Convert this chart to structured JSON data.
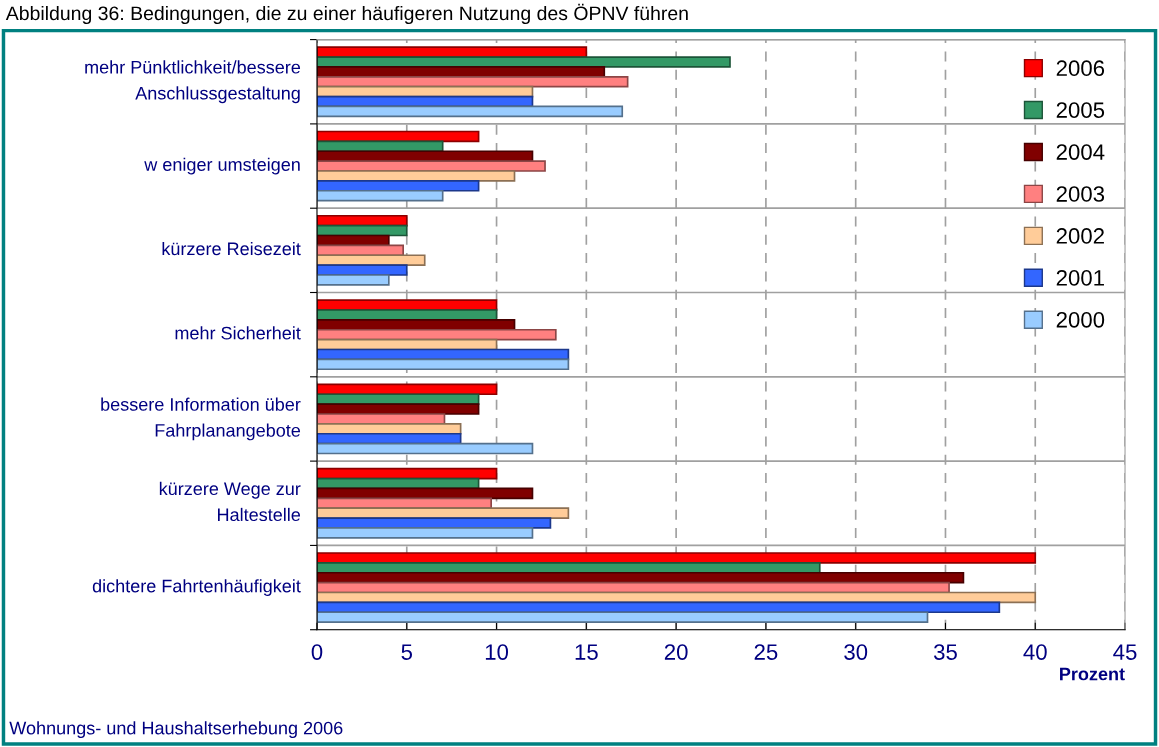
{
  "chart_data": {
    "type": "bar",
    "orientation": "horizontal",
    "title": "Abbildung 36: Bedingungen, die zu einer häufigeren Nutzung des ÖPNV führen",
    "xlabel": "Prozent",
    "annotations": [
      "Wohnungs- und Haushaltserhebung 2006"
    ],
    "categories": [
      "mehr Pünktlichkeit/bessere\nAnschlussgestaltung",
      "w eniger umsteigen",
      "kürzere Reisezeit",
      "mehr Sicherheit",
      "bessere Information über\nFahrplanangebote",
      "kürzere Wege zur\nHaltestelle",
      "dichtere Fahrtenhäufigkeit"
    ],
    "series": [
      {
        "name": "2006",
        "color": "#ff0000",
        "values": [
          15,
          9,
          5,
          10,
          10,
          10,
          40
        ]
      },
      {
        "name": "2005",
        "color": "#339966",
        "values": [
          23,
          7,
          5,
          10,
          9,
          9,
          28
        ]
      },
      {
        "name": "2004",
        "color": "#800000",
        "values": [
          16,
          12,
          4,
          11,
          9,
          12,
          36
        ]
      },
      {
        "name": "2003",
        "color": "#ff8080",
        "values": [
          17.3,
          12.7,
          4.8,
          13.3,
          7.1,
          9.7,
          35.2
        ]
      },
      {
        "name": "2002",
        "color": "#ffcc99",
        "values": [
          12,
          11,
          6,
          10,
          8,
          14,
          40
        ]
      },
      {
        "name": "2001",
        "color": "#3366ff",
        "values": [
          12,
          9,
          5,
          14,
          8,
          13,
          38
        ]
      },
      {
        "name": "2000",
        "color": "#99ccff",
        "values": [
          17,
          7,
          4,
          14,
          12,
          12,
          34
        ]
      }
    ],
    "xlim": [
      0,
      45
    ],
    "xticks": [
      0,
      5,
      10,
      15,
      20,
      25,
      30,
      35,
      40,
      45
    ],
    "grid": true,
    "legend": "top right"
  }
}
